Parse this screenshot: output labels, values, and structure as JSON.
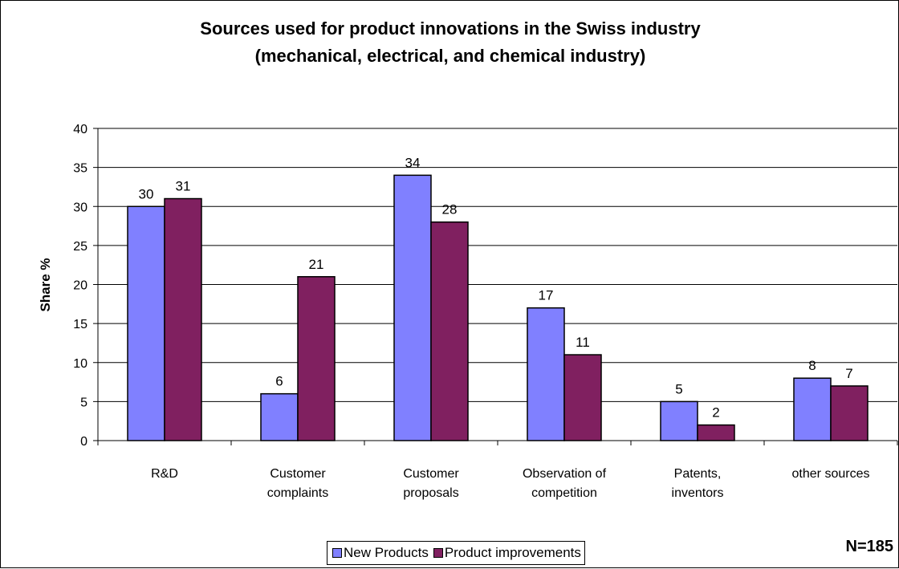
{
  "chart_data": {
    "type": "bar",
    "title_lines": [
      "Sources used for product innovations in the Swiss industry",
      "(mechanical, electrical, and chemical industry)"
    ],
    "ylabel": "Share %",
    "xlabel": "",
    "ylim": [
      0,
      40
    ],
    "y_ticks": [
      "0",
      "5",
      "10",
      "15",
      "20",
      "25",
      "30",
      "35",
      "40"
    ],
    "grid": true,
    "legend_position": "bottom",
    "categories": [
      [
        "R&D"
      ],
      [
        "Customer",
        "complaints"
      ],
      [
        "Customer",
        "proposals"
      ],
      [
        "Observation of",
        "competition"
      ],
      [
        "Patents,",
        "inventors"
      ],
      [
        "other sources"
      ]
    ],
    "series": [
      {
        "name": "New Products",
        "color": "#8080ff",
        "values": [
          30,
          6,
          34,
          17,
          5,
          8
        ]
      },
      {
        "name": "Product improvements",
        "color": "#802060",
        "values": [
          31,
          21,
          28,
          11,
          2,
          7
        ]
      }
    ],
    "note": "N=185"
  }
}
